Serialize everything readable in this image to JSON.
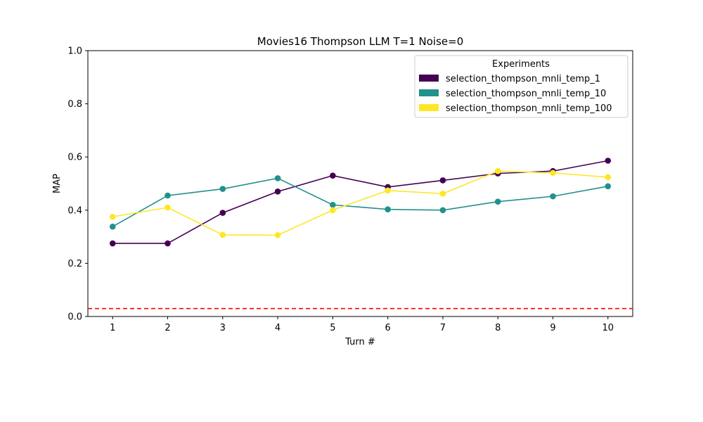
{
  "chart_data": {
    "type": "line",
    "title": "Movies16 Thompson LLM T=1 Noise=0",
    "xlabel": "Turn #",
    "ylabel": "MAP",
    "x": [
      1,
      2,
      3,
      4,
      5,
      6,
      7,
      8,
      9,
      10
    ],
    "xticks": [
      "1",
      "2",
      "3",
      "4",
      "5",
      "6",
      "7",
      "8",
      "9",
      "10"
    ],
    "ylim": [
      0,
      1
    ],
    "yticks": [
      "0.0",
      "0.2",
      "0.4",
      "0.6",
      "0.8",
      "1.0"
    ],
    "grid": false,
    "legend": {
      "title": "Experiments",
      "placement": "top-right"
    },
    "series": [
      {
        "name": "selection_thompson_mnli_temp_1",
        "color": "#440154",
        "values": [
          0.275,
          0.275,
          0.39,
          0.47,
          0.53,
          0.487,
          0.512,
          0.538,
          0.547,
          0.586
        ]
      },
      {
        "name": "selection_thompson_mnli_temp_10",
        "color": "#21918c",
        "values": [
          0.338,
          0.455,
          0.48,
          0.52,
          0.42,
          0.403,
          0.4,
          0.432,
          0.452,
          0.49
        ]
      },
      {
        "name": "selection_thompson_mnli_temp_100",
        "color": "#fde725",
        "values": [
          0.375,
          0.41,
          0.307,
          0.306,
          0.4,
          0.474,
          0.462,
          0.547,
          0.54,
          0.524
        ]
      }
    ],
    "baseline": {
      "value": 0.03,
      "color": "#ff0000",
      "style": "dashed"
    }
  }
}
